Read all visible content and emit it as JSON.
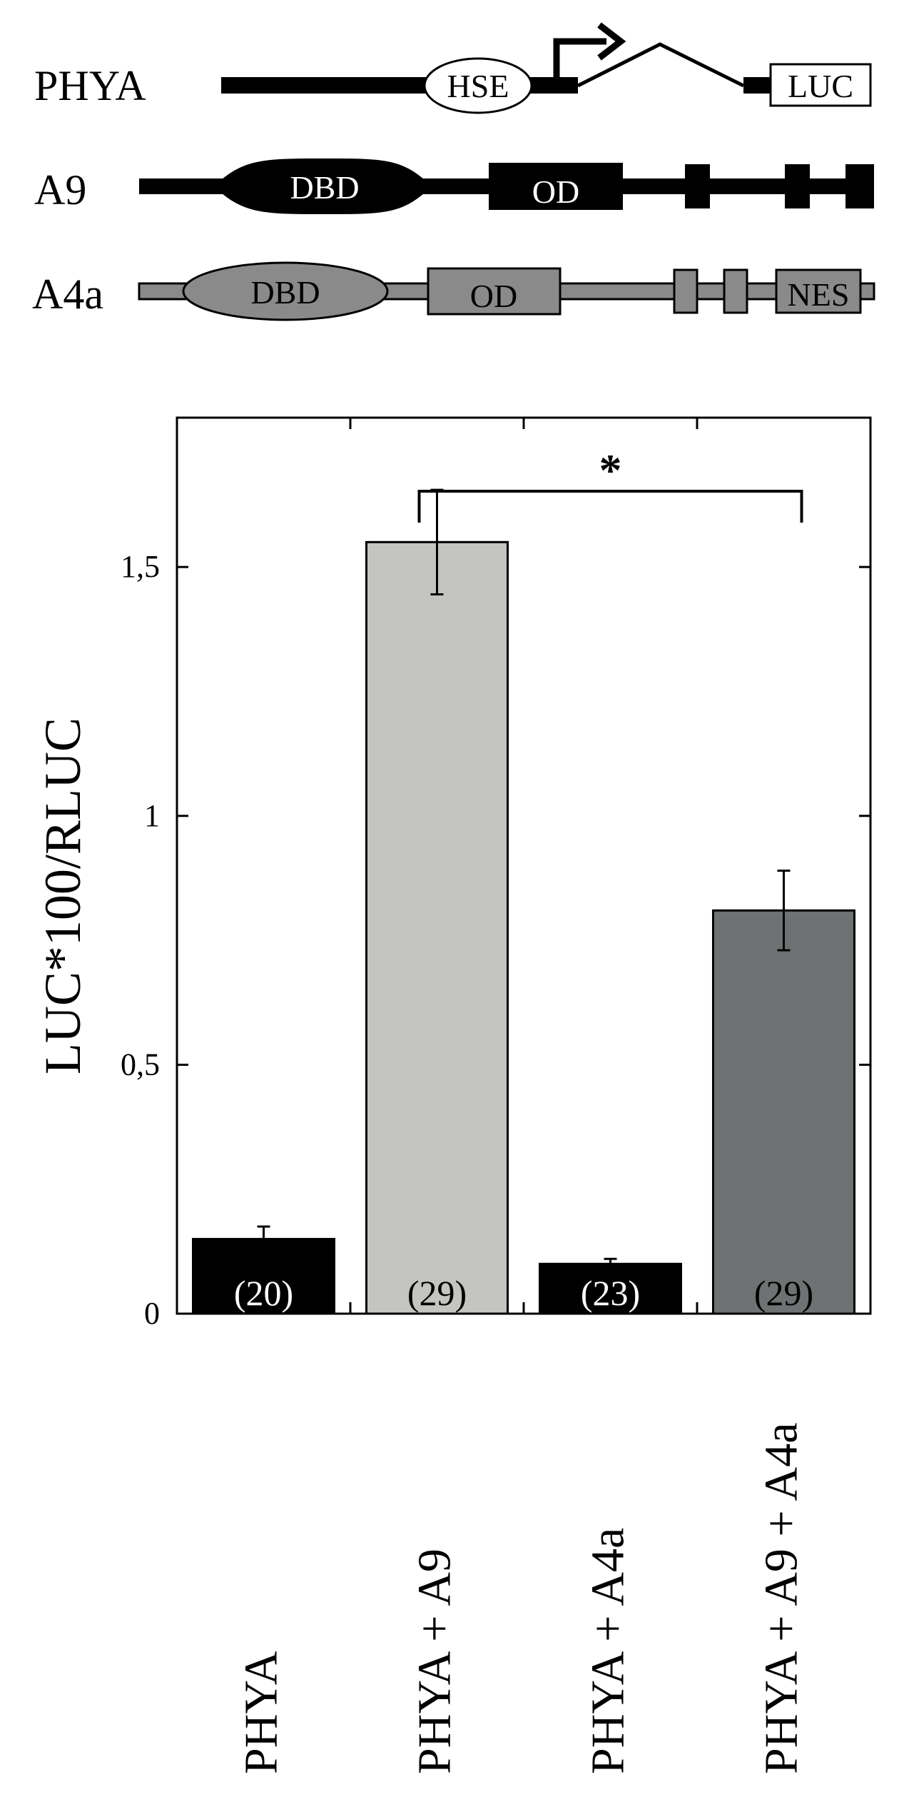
{
  "schematic": {
    "constructs": [
      {
        "label": "PHYA",
        "elements": [
          "HSE",
          "LUC"
        ]
      },
      {
        "label": "A9",
        "elements": [
          "DBD",
          "OD"
        ]
      },
      {
        "label": "A4a",
        "elements": [
          "DBD",
          "OD",
          "NES"
        ]
      }
    ]
  },
  "chart_data": {
    "type": "bar",
    "title": "",
    "xlabel": "",
    "ylabel": "LUC*100/RLUC",
    "ylim": [
      0,
      1.8
    ],
    "yticks": [
      0,
      0.5,
      1,
      1.5
    ],
    "ytick_labels": [
      "0",
      "0,5",
      "1",
      "1,5"
    ],
    "grid": false,
    "categories": [
      "PHYA",
      "PHYA + A9",
      "PHYA + A4a",
      "PHYA + A9 + A4a"
    ],
    "values": [
      0.15,
      1.55,
      0.1,
      0.81
    ],
    "errors": [
      0.025,
      0.105,
      0.01,
      0.08
    ],
    "n_labels": [
      "(20)",
      "(29)",
      "(23)",
      "(29)"
    ],
    "bar_colors": [
      "#000000",
      "#c4c5c1",
      "#000000",
      "#6f7272"
    ],
    "n_label_colors": [
      "#ffffff",
      "#000000",
      "#ffffff",
      "#000000"
    ],
    "significance": {
      "from": 1,
      "to": 3,
      "label": "*"
    }
  }
}
